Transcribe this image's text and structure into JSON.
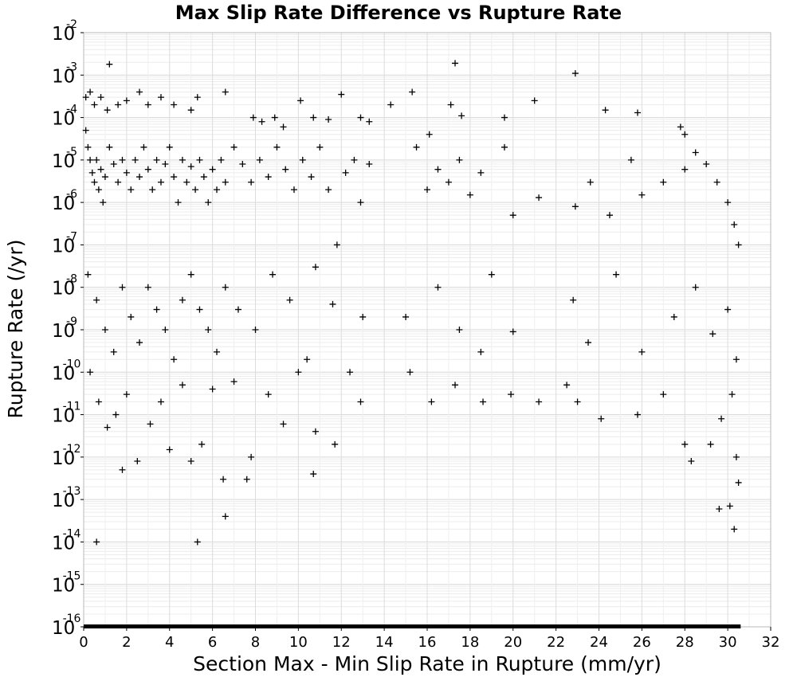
{
  "chart_data": {
    "type": "scatter",
    "title": "Max Slip Rate Difference vs Rupture Rate",
    "xlabel": "Section Max - Min Slip Rate in Rupture (mm/yr)",
    "ylabel": "Rupture Rate (/yr)",
    "xlim": [
      0,
      32
    ],
    "ylim_log10": [
      -16,
      -2
    ],
    "y_scale": "log",
    "grid": true,
    "legend": "none",
    "marker": "plus",
    "marker_color": "#000000",
    "x_ticks": [
      "0",
      "2",
      "4",
      "6",
      "8",
      "10",
      "12",
      "14",
      "16",
      "18",
      "20",
      "22",
      "24",
      "26",
      "28",
      "30",
      "32"
    ],
    "y_ticks": [
      {
        "base": "10",
        "exp": "-2"
      },
      {
        "base": "10",
        "exp": "-3"
      },
      {
        "base": "10",
        "exp": "-4"
      },
      {
        "base": "10",
        "exp": "-5"
      },
      {
        "base": "10",
        "exp": "-6"
      },
      {
        "base": "10",
        "exp": "-7"
      },
      {
        "base": "10",
        "exp": "-8"
      },
      {
        "base": "10",
        "exp": "-9"
      },
      {
        "base": "10",
        "exp": "-10"
      },
      {
        "base": "10",
        "exp": "-11"
      },
      {
        "base": "10",
        "exp": "-12"
      },
      {
        "base": "10",
        "exp": "-13"
      },
      {
        "base": "10",
        "exp": "-14"
      },
      {
        "base": "10",
        "exp": "-15"
      },
      {
        "base": "10",
        "exp": "-16"
      }
    ],
    "series": [
      {
        "points": [
          [
            1.2,
            0.0018
          ],
          [
            17.3,
            0.0019
          ],
          [
            22.9,
            0.0011
          ],
          [
            0.1,
            0.0003
          ],
          [
            0.3,
            0.0004
          ],
          [
            0.5,
            0.0002
          ],
          [
            0.8,
            0.0003
          ],
          [
            1.1,
            0.00015
          ],
          [
            1.6,
            0.0002
          ],
          [
            2.0,
            0.00025
          ],
          [
            2.6,
            0.0004
          ],
          [
            3.0,
            0.0002
          ],
          [
            3.6,
            0.0003
          ],
          [
            4.2,
            0.0002
          ],
          [
            5.0,
            0.00015
          ],
          [
            5.3,
            0.0003
          ],
          [
            6.6,
            0.0004
          ],
          [
            7.9,
            0.0001
          ],
          [
            8.3,
            8e-05
          ],
          [
            8.9,
            0.0001
          ],
          [
            9.3,
            6e-05
          ],
          [
            10.1,
            0.00025
          ],
          [
            10.7,
            0.0001
          ],
          [
            11.4,
            9e-05
          ],
          [
            12.0,
            0.00035
          ],
          [
            12.9,
            0.0001
          ],
          [
            13.3,
            8e-05
          ],
          [
            14.3,
            0.0002
          ],
          [
            15.3,
            0.0004
          ],
          [
            16.1,
            4e-05
          ],
          [
            17.1,
            0.0002
          ],
          [
            17.6,
            0.00011
          ],
          [
            19.6,
            0.0001
          ],
          [
            21.0,
            0.00025
          ],
          [
            24.3,
            0.00015
          ],
          [
            25.8,
            0.00013
          ],
          [
            27.8,
            6e-05
          ],
          [
            28.0,
            4e-05
          ],
          [
            0.1,
            5e-05
          ],
          [
            0.2,
            2e-05
          ],
          [
            0.3,
            1e-05
          ],
          [
            0.4,
            5e-06
          ],
          [
            0.5,
            3e-06
          ],
          [
            0.6,
            1e-05
          ],
          [
            0.7,
            2e-06
          ],
          [
            0.8,
            6e-06
          ],
          [
            0.9,
            1e-06
          ],
          [
            1.0,
            4e-06
          ],
          [
            1.2,
            2e-05
          ],
          [
            1.4,
            8e-06
          ],
          [
            1.6,
            3e-06
          ],
          [
            1.8,
            1e-05
          ],
          [
            2.0,
            5e-06
          ],
          [
            2.2,
            2e-06
          ],
          [
            2.4,
            1e-05
          ],
          [
            2.6,
            4e-06
          ],
          [
            2.8,
            2e-05
          ],
          [
            3.0,
            6e-06
          ],
          [
            3.2,
            2e-06
          ],
          [
            3.4,
            1e-05
          ],
          [
            3.6,
            3e-06
          ],
          [
            3.8,
            8e-06
          ],
          [
            4.0,
            2e-05
          ],
          [
            4.2,
            4e-06
          ],
          [
            4.4,
            1e-06
          ],
          [
            4.6,
            1e-05
          ],
          [
            4.8,
            3e-06
          ],
          [
            5.0,
            7e-06
          ],
          [
            5.2,
            2e-06
          ],
          [
            5.4,
            1e-05
          ],
          [
            5.6,
            4e-06
          ],
          [
            5.8,
            1e-06
          ],
          [
            6.0,
            6e-06
          ],
          [
            6.2,
            2e-06
          ],
          [
            6.4,
            1e-05
          ],
          [
            6.6,
            3e-06
          ],
          [
            7.0,
            2e-05
          ],
          [
            7.4,
            8e-06
          ],
          [
            7.8,
            3e-06
          ],
          [
            8.2,
            1e-05
          ],
          [
            8.6,
            4e-06
          ],
          [
            9.0,
            2e-05
          ],
          [
            9.4,
            6e-06
          ],
          [
            9.8,
            2e-06
          ],
          [
            10.2,
            1e-05
          ],
          [
            10.6,
            4e-06
          ],
          [
            11.0,
            2e-05
          ],
          [
            11.4,
            2e-06
          ],
          [
            11.8,
            1e-07
          ],
          [
            12.2,
            5e-06
          ],
          [
            12.6,
            1e-05
          ],
          [
            12.9,
            1e-06
          ],
          [
            13.3,
            8e-06
          ],
          [
            15.5,
            2e-05
          ],
          [
            16.0,
            2e-06
          ],
          [
            16.5,
            6e-06
          ],
          [
            17.0,
            3e-06
          ],
          [
            17.5,
            1e-05
          ],
          [
            18.0,
            1.5e-06
          ],
          [
            18.5,
            5e-06
          ],
          [
            19.6,
            2e-05
          ],
          [
            20.0,
            5e-07
          ],
          [
            21.2,
            1.3e-06
          ],
          [
            22.9,
            8e-07
          ],
          [
            23.6,
            3e-06
          ],
          [
            24.5,
            5e-07
          ],
          [
            25.5,
            1e-05
          ],
          [
            26.0,
            1.5e-06
          ],
          [
            27.0,
            3e-06
          ],
          [
            28.0,
            6e-06
          ],
          [
            28.5,
            1.5e-05
          ],
          [
            29.0,
            8e-06
          ],
          [
            29.5,
            3e-06
          ],
          [
            30.0,
            1e-06
          ],
          [
            30.3,
            3e-07
          ],
          [
            30.5,
            1e-07
          ],
          [
            0.2,
            2e-08
          ],
          [
            0.6,
            5e-09
          ],
          [
            1.0,
            1e-09
          ],
          [
            1.4,
            3e-10
          ],
          [
            1.8,
            1e-08
          ],
          [
            2.2,
            2e-09
          ],
          [
            2.6,
            5e-10
          ],
          [
            3.0,
            1e-08
          ],
          [
            3.4,
            3e-09
          ],
          [
            3.8,
            1e-09
          ],
          [
            4.2,
            2e-10
          ],
          [
            4.6,
            5e-09
          ],
          [
            5.0,
            2e-08
          ],
          [
            5.4,
            3e-09
          ],
          [
            5.8,
            1e-09
          ],
          [
            6.2,
            3e-10
          ],
          [
            6.6,
            1e-08
          ],
          [
            7.2,
            3e-09
          ],
          [
            8.0,
            1e-09
          ],
          [
            8.8,
            2e-08
          ],
          [
            9.6,
            5e-09
          ],
          [
            10.4,
            2e-10
          ],
          [
            10.8,
            3e-08
          ],
          [
            11.6,
            4e-09
          ],
          [
            12.4,
            1e-10
          ],
          [
            13.0,
            2e-09
          ],
          [
            15.0,
            2e-09
          ],
          [
            16.5,
            1e-08
          ],
          [
            17.5,
            1e-09
          ],
          [
            18.5,
            3e-10
          ],
          [
            19.0,
            2e-08
          ],
          [
            20.0,
            9e-10
          ],
          [
            22.8,
            5e-09
          ],
          [
            23.5,
            5e-10
          ],
          [
            24.8,
            2e-08
          ],
          [
            26.0,
            3e-10
          ],
          [
            27.5,
            2e-09
          ],
          [
            28.5,
            1e-08
          ],
          [
            29.3,
            8e-10
          ],
          [
            30.0,
            3e-09
          ],
          [
            30.4,
            2e-10
          ],
          [
            0.3,
            1e-10
          ],
          [
            0.7,
            2e-11
          ],
          [
            1.1,
            5e-12
          ],
          [
            1.5,
            1e-11
          ],
          [
            2.0,
            3e-11
          ],
          [
            2.5,
            8e-13
          ],
          [
            3.1,
            6e-12
          ],
          [
            3.6,
            2e-11
          ],
          [
            4.0,
            1.5e-12
          ],
          [
            4.6,
            5e-11
          ],
          [
            5.0,
            8e-13
          ],
          [
            5.5,
            2e-12
          ],
          [
            6.0,
            4e-11
          ],
          [
            6.5,
            3e-13
          ],
          [
            7.0,
            6e-11
          ],
          [
            7.8,
            1e-12
          ],
          [
            8.6,
            3e-11
          ],
          [
            9.3,
            6e-12
          ],
          [
            10.0,
            1e-10
          ],
          [
            10.8,
            4e-12
          ],
          [
            11.7,
            2e-12
          ],
          [
            12.9,
            2e-11
          ],
          [
            15.2,
            1e-10
          ],
          [
            16.2,
            2e-11
          ],
          [
            17.3,
            5e-11
          ],
          [
            18.6,
            2e-11
          ],
          [
            19.9,
            3e-11
          ],
          [
            21.2,
            2e-11
          ],
          [
            22.5,
            5e-11
          ],
          [
            23.0,
            2e-11
          ],
          [
            24.1,
            8e-12
          ],
          [
            25.8,
            1e-11
          ],
          [
            27.0,
            3e-11
          ],
          [
            28.0,
            2e-12
          ],
          [
            28.3,
            8e-13
          ],
          [
            29.2,
            2e-12
          ],
          [
            29.7,
            8e-12
          ],
          [
            30.2,
            3e-11
          ],
          [
            30.4,
            1e-12
          ],
          [
            0.6,
            1e-14
          ],
          [
            1.8,
            5e-13
          ],
          [
            5.3,
            1e-14
          ],
          [
            6.6,
            4e-14
          ],
          [
            7.6,
            3e-13
          ],
          [
            10.7,
            4e-13
          ],
          [
            29.6,
            6e-14
          ],
          [
            30.1,
            7e-14
          ],
          [
            30.3,
            2e-14
          ],
          [
            30.5,
            2.5e-13
          ]
        ]
      }
    ],
    "bottom_band": {
      "y": 1e-16,
      "x_range": [
        0,
        30.6
      ]
    }
  }
}
